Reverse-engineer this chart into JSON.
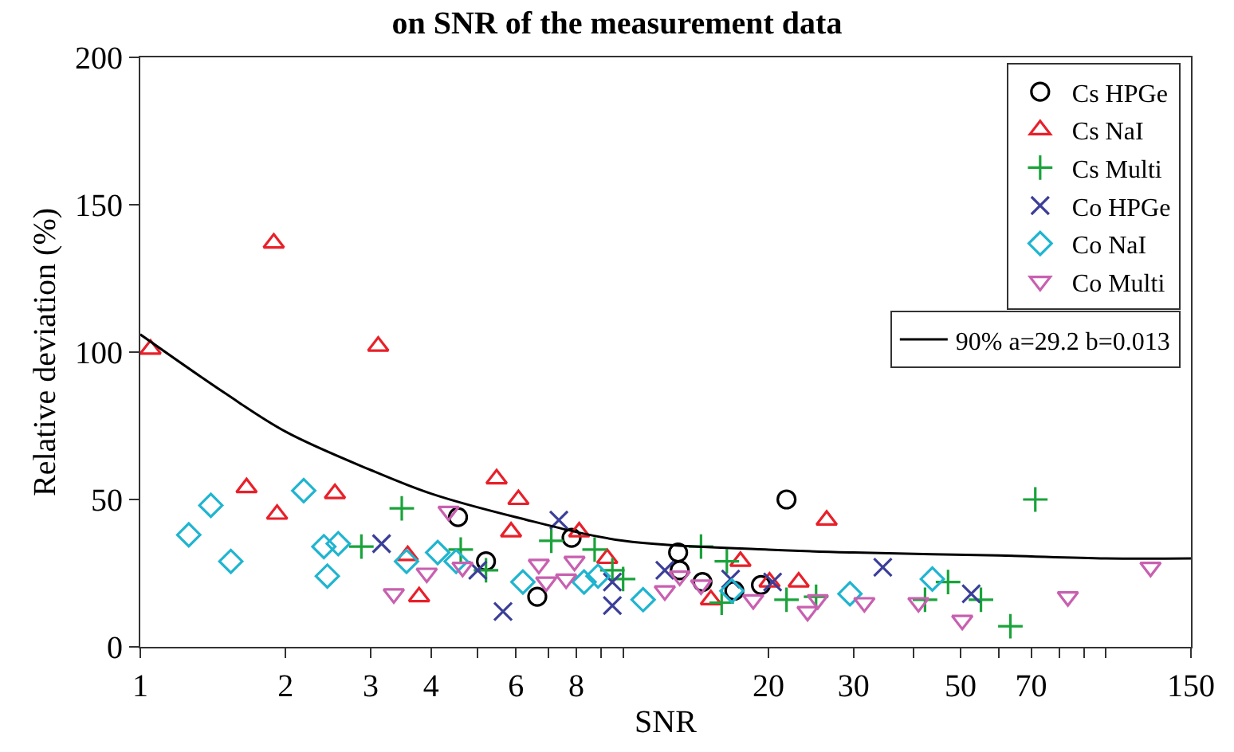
{
  "chart_data": {
    "type": "scatter",
    "title": "on SNR of the measurement data",
    "xlabel": "SNR",
    "ylabel": "Relative deviation (%)",
    "log": "x",
    "xlim": [
      1,
      150
    ],
    "ylim": [
      0,
      200
    ],
    "xticks": [
      1,
      2,
      3,
      4,
      {
        "value": 5,
        "label": null
      },
      6,
      {
        "value": 7,
        "label": null
      },
      8,
      {
        "value": 9,
        "label": null
      },
      {
        "value": 10,
        "label": null
      },
      20,
      30,
      {
        "value": 40,
        "label": null
      },
      50,
      {
        "value": 60,
        "label": null
      },
      70,
      {
        "value": 80,
        "label": null
      },
      {
        "value": 90,
        "label": null
      },
      {
        "value": 100,
        "label": null
      },
      150
    ],
    "yticks": [
      0,
      50,
      100,
      150,
      200
    ],
    "legend": "top right",
    "series": [
      {
        "name": "Cs HPGe",
        "color": "#000000",
        "marker": "circle",
        "x": [
          4.55,
          5.2,
          6.64,
          7.82,
          13.0,
          13.1,
          14.6,
          17.0,
          19.3,
          21.8
        ],
        "values": [
          44,
          29,
          17,
          37,
          32,
          26,
          22,
          19,
          21,
          50
        ]
      },
      {
        "name": "Cs NaI",
        "color": "#e8202a",
        "marker": "triangle",
        "x": [
          1.05,
          1.89,
          3.11,
          1.66,
          1.92,
          2.53,
          3.58,
          3.78,
          5.47,
          6.07,
          5.86,
          8.11,
          9.27,
          17.5,
          15.2,
          20.1,
          23.1,
          26.4
        ],
        "values": [
          101,
          137,
          102,
          54,
          45,
          52,
          31,
          17,
          57,
          50,
          39,
          39,
          30,
          29,
          16,
          22,
          22,
          43
        ]
      },
      {
        "name": "Cs Multi",
        "color": "#1aa33a",
        "marker": "cross",
        "x": [
          3.48,
          2.87,
          4.61,
          5.2,
          7.1,
          8.73,
          10.0,
          9.5,
          14.5,
          16.4,
          16.0,
          21.8,
          25.1,
          42.2,
          47.1,
          55.1,
          63.4,
          71.4
        ],
        "values": [
          47,
          34,
          33,
          26,
          36,
          33,
          23,
          26,
          34,
          29,
          15,
          16,
          17,
          16,
          22,
          16,
          7,
          50
        ]
      },
      {
        "name": "Co HPGe",
        "color": "#3b3f99",
        "marker": "x",
        "x": [
          3.16,
          5.0,
          5.64,
          7.36,
          9.5,
          9.5,
          12.2,
          16.7,
          20.4,
          34.5,
          52.6
        ],
        "values": [
          35,
          26,
          12,
          43,
          22,
          14,
          26,
          23,
          22,
          27,
          18
        ]
      },
      {
        "name": "Co NaI",
        "color": "#1fb5d0",
        "marker": "diamond",
        "x": [
          1.26,
          1.4,
          1.54,
          2.18,
          2.4,
          2.57,
          2.44,
          3.56,
          4.13,
          4.51,
          6.2,
          8.3,
          8.87,
          11.0,
          16.8,
          29.5,
          43.7
        ],
        "values": [
          38,
          48,
          29,
          53,
          34,
          35,
          24,
          29,
          32,
          29,
          22,
          22,
          24,
          16,
          19,
          18,
          23
        ]
      },
      {
        "name": "Co Multi",
        "color": "#c860b0",
        "marker": "triangle-down",
        "x": [
          3.35,
          3.92,
          4.35,
          4.65,
          6.69,
          6.93,
          7.62,
          7.93,
          12.2,
          13.1,
          14.5,
          18.6,
          24.1,
          25.3,
          31.6,
          40.9,
          50.4,
          83.4,
          123.7
        ],
        "values": [
          18,
          25,
          46,
          27,
          28,
          22,
          23,
          29,
          19,
          24,
          21,
          16,
          12,
          16,
          15,
          15,
          9,
          17,
          27
        ]
      },
      {
        "name": "90% a=29.2 b=0.013",
        "type": "line",
        "color": "#000000",
        "marker": "none",
        "x": [
          1,
          1.5,
          2,
          3,
          4,
          6,
          10,
          20,
          30,
          60,
          100,
          150
        ],
        "values": [
          106,
          86,
          73,
          60,
          52,
          44,
          36,
          33,
          32,
          31,
          30,
          30
        ]
      }
    ]
  }
}
